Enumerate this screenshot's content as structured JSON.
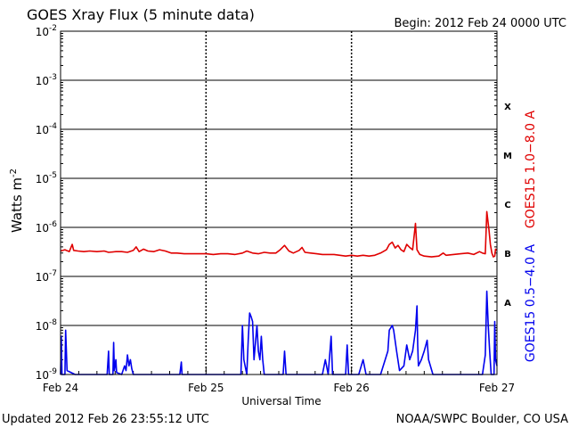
{
  "chart_data": {
    "type": "line",
    "title": "GOES Xray Flux (5 minute data)",
    "begin": "Begin:  2012 Feb 24 0000 UTC",
    "ylabel_main": "Watts m",
    "ylabel_exp": "-2",
    "xlabel": "Universal Time",
    "y_scale": "log",
    "ylim": [
      1e-09,
      0.01
    ],
    "y_ticks": [
      {
        "value": 0.01,
        "base": "10",
        "exp": "-2"
      },
      {
        "value": 0.001,
        "base": "10",
        "exp": "-3"
      },
      {
        "value": 0.0001,
        "base": "10",
        "exp": "-4"
      },
      {
        "value": 1e-05,
        "base": "10",
        "exp": "-5"
      },
      {
        "value": 1e-06,
        "base": "10",
        "exp": "-6"
      },
      {
        "value": 1e-07,
        "base": "10",
        "exp": "-7"
      },
      {
        "value": 1e-08,
        "base": "10",
        "exp": "-8"
      },
      {
        "value": 1e-09,
        "base": "10",
        "exp": "-9"
      }
    ],
    "x_range_days": [
      0,
      3
    ],
    "x_ticks": [
      {
        "day": 0,
        "label": "Feb 24"
      },
      {
        "day": 1,
        "label": "Feb 25"
      },
      {
        "day": 2,
        "label": "Feb 26"
      },
      {
        "day": 3,
        "label": "Feb 27"
      }
    ],
    "flare_classes": [
      {
        "label": "X",
        "value": 0.0003
      },
      {
        "label": "M",
        "value": 3e-05
      },
      {
        "label": "C",
        "value": 3e-06
      },
      {
        "label": "B",
        "value": 3e-07
      },
      {
        "label": "A",
        "value": 3e-08
      }
    ],
    "grid": true,
    "series": [
      {
        "name": "GOES15 1.0−8.0 A",
        "color": "#e00000",
        "points": [
          [
            0.0,
            3.3e-07
          ],
          [
            0.03,
            3.5e-07
          ],
          [
            0.06,
            3.2e-07
          ],
          [
            0.08,
            4.5e-07
          ],
          [
            0.09,
            3.4e-07
          ],
          [
            0.12,
            3.3e-07
          ],
          [
            0.16,
            3.2e-07
          ],
          [
            0.2,
            3.3e-07
          ],
          [
            0.25,
            3.2e-07
          ],
          [
            0.3,
            3.3e-07
          ],
          [
            0.33,
            3.1e-07
          ],
          [
            0.38,
            3.2e-07
          ],
          [
            0.42,
            3.2e-07
          ],
          [
            0.46,
            3.1e-07
          ],
          [
            0.5,
            3.4e-07
          ],
          [
            0.52,
            4e-07
          ],
          [
            0.54,
            3.2e-07
          ],
          [
            0.57,
            3.6e-07
          ],
          [
            0.6,
            3.3e-07
          ],
          [
            0.64,
            3.2e-07
          ],
          [
            0.68,
            3.5e-07
          ],
          [
            0.72,
            3.3e-07
          ],
          [
            0.76,
            3e-07
          ],
          [
            0.8,
            3e-07
          ],
          [
            0.85,
            2.9e-07
          ],
          [
            0.9,
            2.9e-07
          ],
          [
            0.95,
            2.9e-07
          ],
          [
            1.0,
            2.9e-07
          ],
          [
            1.05,
            2.8e-07
          ],
          [
            1.1,
            2.9e-07
          ],
          [
            1.15,
            2.9e-07
          ],
          [
            1.2,
            2.8e-07
          ],
          [
            1.25,
            3e-07
          ],
          [
            1.28,
            3.3e-07
          ],
          [
            1.32,
            3e-07
          ],
          [
            1.36,
            2.9e-07
          ],
          [
            1.4,
            3.1e-07
          ],
          [
            1.44,
            3e-07
          ],
          [
            1.48,
            3e-07
          ],
          [
            1.51,
            3.5e-07
          ],
          [
            1.54,
            4.3e-07
          ],
          [
            1.57,
            3.3e-07
          ],
          [
            1.6,
            3e-07
          ],
          [
            1.64,
            3.4e-07
          ],
          [
            1.66,
            3.9e-07
          ],
          [
            1.68,
            3.1e-07
          ],
          [
            1.72,
            3e-07
          ],
          [
            1.76,
            2.9e-07
          ],
          [
            1.8,
            2.8e-07
          ],
          [
            1.84,
            2.8e-07
          ],
          [
            1.88,
            2.8e-07
          ],
          [
            1.92,
            2.7e-07
          ],
          [
            1.96,
            2.6e-07
          ],
          [
            2.0,
            2.7e-07
          ],
          [
            2.04,
            2.6e-07
          ],
          [
            2.08,
            2.7e-07
          ],
          [
            2.12,
            2.6e-07
          ],
          [
            2.16,
            2.7e-07
          ],
          [
            2.2,
            3e-07
          ],
          [
            2.24,
            3.5e-07
          ],
          [
            2.26,
            4.5e-07
          ],
          [
            2.28,
            5e-07
          ],
          [
            2.3,
            3.8e-07
          ],
          [
            2.32,
            4.3e-07
          ],
          [
            2.34,
            3.5e-07
          ],
          [
            2.36,
            3.2e-07
          ],
          [
            2.38,
            4.5e-07
          ],
          [
            2.4,
            3.9e-07
          ],
          [
            2.42,
            3.5e-07
          ],
          [
            2.44,
            1.2e-06
          ],
          [
            2.45,
            3.5e-07
          ],
          [
            2.47,
            2.8e-07
          ],
          [
            2.5,
            2.6e-07
          ],
          [
            2.55,
            2.5e-07
          ],
          [
            2.6,
            2.6e-07
          ],
          [
            2.63,
            3e-07
          ],
          [
            2.65,
            2.7e-07
          ],
          [
            2.7,
            2.8e-07
          ],
          [
            2.75,
            2.9e-07
          ],
          [
            2.8,
            3e-07
          ],
          [
            2.84,
            2.8e-07
          ],
          [
            2.88,
            3.2e-07
          ],
          [
            2.9,
            3e-07
          ],
          [
            2.92,
            2.9e-07
          ],
          [
            2.93,
            2.1e-06
          ],
          [
            2.945,
            9e-07
          ],
          [
            2.955,
            4.5e-07
          ],
          [
            2.965,
            3e-07
          ],
          [
            2.975,
            2.5e-07
          ],
          [
            2.985,
            2.6e-07
          ],
          [
            2.99,
            3.6e-07
          ],
          [
            3.0,
            3.4e-07
          ]
        ]
      },
      {
        "name": "GOES15 0.5−4.0 A",
        "color": "#0000ee",
        "points": [
          [
            0.0,
            1e-09
          ],
          [
            0.005,
            6e-09
          ],
          [
            0.01,
            1e-09
          ],
          [
            0.03,
            1e-09
          ],
          [
            0.035,
            8e-09
          ],
          [
            0.045,
            1.2e-09
          ],
          [
            0.1,
            1e-09
          ],
          [
            0.2,
            1e-09
          ],
          [
            0.3,
            1e-09
          ],
          [
            0.32,
            1e-09
          ],
          [
            0.33,
            3e-09
          ],
          [
            0.335,
            1e-09
          ],
          [
            0.36,
            1e-09
          ],
          [
            0.365,
            4.5e-09
          ],
          [
            0.37,
            1.2e-09
          ],
          [
            0.38,
            2e-09
          ],
          [
            0.385,
            1.1e-09
          ],
          [
            0.42,
            1e-09
          ],
          [
            0.44,
            1.5e-09
          ],
          [
            0.45,
            1.2e-09
          ],
          [
            0.46,
            2.5e-09
          ],
          [
            0.47,
            1.5e-09
          ],
          [
            0.48,
            2e-09
          ],
          [
            0.49,
            1.3e-09
          ],
          [
            0.5,
            1e-09
          ],
          [
            0.55,
            1e-09
          ],
          [
            0.6,
            1e-09
          ],
          [
            0.7,
            1e-09
          ],
          [
            0.8,
            1e-09
          ],
          [
            0.82,
            1e-09
          ],
          [
            0.83,
            1.8e-09
          ],
          [
            0.835,
            1e-09
          ],
          [
            0.9,
            1e-09
          ],
          [
            1.0,
            1e-09
          ],
          [
            1.1,
            1e-09
          ],
          [
            1.2,
            1e-09
          ],
          [
            1.24,
            1e-09
          ],
          [
            1.25,
            1e-08
          ],
          [
            1.26,
            2e-09
          ],
          [
            1.28,
            1e-09
          ],
          [
            1.29,
            5e-09
          ],
          [
            1.3,
            1.8e-08
          ],
          [
            1.31,
            1.5e-08
          ],
          [
            1.32,
            1.2e-08
          ],
          [
            1.33,
            2e-09
          ],
          [
            1.35,
            1e-08
          ],
          [
            1.36,
            3e-09
          ],
          [
            1.37,
            2e-09
          ],
          [
            1.38,
            6e-09
          ],
          [
            1.39,
            2e-09
          ],
          [
            1.4,
            1e-09
          ],
          [
            1.45,
            1e-09
          ],
          [
            1.5,
            1e-09
          ],
          [
            1.53,
            1e-09
          ],
          [
            1.54,
            3e-09
          ],
          [
            1.55,
            1e-09
          ],
          [
            1.6,
            1e-09
          ],
          [
            1.7,
            1e-09
          ],
          [
            1.8,
            1e-09
          ],
          [
            1.82,
            2e-09
          ],
          [
            1.84,
            1e-09
          ],
          [
            1.86,
            6e-09
          ],
          [
            1.87,
            1e-09
          ],
          [
            1.9,
            1e-09
          ],
          [
            1.96,
            1e-09
          ],
          [
            1.97,
            4e-09
          ],
          [
            1.98,
            1e-09
          ],
          [
            2.0,
            1e-09
          ],
          [
            2.05,
            1e-09
          ],
          [
            2.08,
            2e-09
          ],
          [
            2.1,
            1e-09
          ],
          [
            2.15,
            1e-09
          ],
          [
            2.2,
            1e-09
          ],
          [
            2.25,
            3e-09
          ],
          [
            2.26,
            8e-09
          ],
          [
            2.28,
            1e-08
          ],
          [
            2.29,
            8e-09
          ],
          [
            2.31,
            3e-09
          ],
          [
            2.33,
            1.2e-09
          ],
          [
            2.36,
            1.5e-09
          ],
          [
            2.38,
            4e-09
          ],
          [
            2.4,
            2e-09
          ],
          [
            2.42,
            3e-09
          ],
          [
            2.44,
            8e-09
          ],
          [
            2.45,
            2.5e-08
          ],
          [
            2.455,
            4e-09
          ],
          [
            2.46,
            1.5e-09
          ],
          [
            2.48,
            2e-09
          ],
          [
            2.5,
            3e-09
          ],
          [
            2.52,
            5e-09
          ],
          [
            2.53,
            2e-09
          ],
          [
            2.56,
            1e-09
          ],
          [
            2.6,
            1e-09
          ],
          [
            2.65,
            1e-09
          ],
          [
            2.7,
            1e-09
          ],
          [
            2.75,
            1e-09
          ],
          [
            2.8,
            1e-09
          ],
          [
            2.85,
            1e-09
          ],
          [
            2.9,
            1e-09
          ],
          [
            2.92,
            2.5e-09
          ],
          [
            2.93,
            5e-08
          ],
          [
            2.94,
            1e-08
          ],
          [
            2.95,
            3e-09
          ],
          [
            2.96,
            1e-09
          ],
          [
            2.98,
            1e-09
          ],
          [
            2.985,
            1.2e-08
          ],
          [
            2.99,
            2e-09
          ],
          [
            3.0,
            1.5e-09
          ]
        ]
      }
    ]
  },
  "footer": {
    "updated": "Updated 2012 Feb 26 23:55:12 UTC",
    "source": "NOAA/SWPC Boulder, CO USA"
  }
}
